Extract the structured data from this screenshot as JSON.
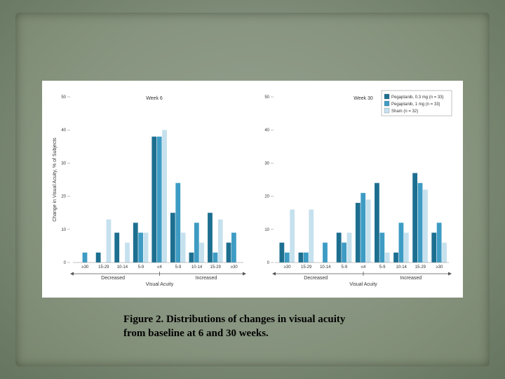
{
  "caption": {
    "line1": "Figure 2. Distributions of changes in visual acuity",
    "line2": "from baseline at 6 and 30 weeks."
  },
  "colors": {
    "series": [
      "#1d6f90",
      "#3e9cc4",
      "#c6e1ee"
    ],
    "axis": "#555555"
  },
  "chart_data": [
    {
      "type": "bar",
      "title": "Week 6",
      "ylabel": "Change in Visual Acuity, % of Subjects",
      "xlabel": "Visual Acuity",
      "group_labels": [
        "Decreased",
        "Increased"
      ],
      "categories": [
        "≥30",
        "15-29",
        "10-14",
        "5-9",
        "≤4",
        "5-9",
        "10-14",
        "15-29",
        "≥30"
      ],
      "yticks": [
        0,
        10,
        20,
        30,
        40,
        50
      ],
      "ylim": [
        0,
        50
      ],
      "series": [
        {
          "values": [
            0,
            3,
            9,
            12,
            38,
            15,
            3,
            15,
            6
          ]
        },
        {
          "values": [
            3,
            0,
            0,
            9,
            38,
            24,
            12,
            3,
            9
          ]
        },
        {
          "values": [
            0,
            13,
            6,
            9,
            40,
            9,
            6,
            13,
            0
          ]
        }
      ]
    },
    {
      "type": "bar",
      "title": "Week 30",
      "ylabel": "",
      "xlabel": "Visual Acuity",
      "group_labels": [
        "Decreased",
        "Increased"
      ],
      "categories": [
        "≥30",
        "15-29",
        "10-14",
        "5-9",
        "≤4",
        "5-9",
        "10-14",
        "15-29",
        "≥30"
      ],
      "yticks": [
        0,
        10,
        20,
        30,
        40,
        50
      ],
      "ylim": [
        0,
        50
      ],
      "legend_position": "top-right",
      "series": [
        {
          "name": "Pegaptanib, 0.3 mg (n = 33)",
          "values": [
            6,
            3,
            0,
            9,
            18,
            24,
            3,
            27,
            9
          ]
        },
        {
          "name": "Pegaptanib, 1 mg (n = 33)",
          "values": [
            3,
            3,
            6,
            6,
            21,
            9,
            12,
            24,
            12
          ]
        },
        {
          "name": "Sham (n = 32)",
          "values": [
            16,
            16,
            0,
            9,
            19,
            3,
            9,
            22,
            6
          ]
        }
      ]
    }
  ]
}
